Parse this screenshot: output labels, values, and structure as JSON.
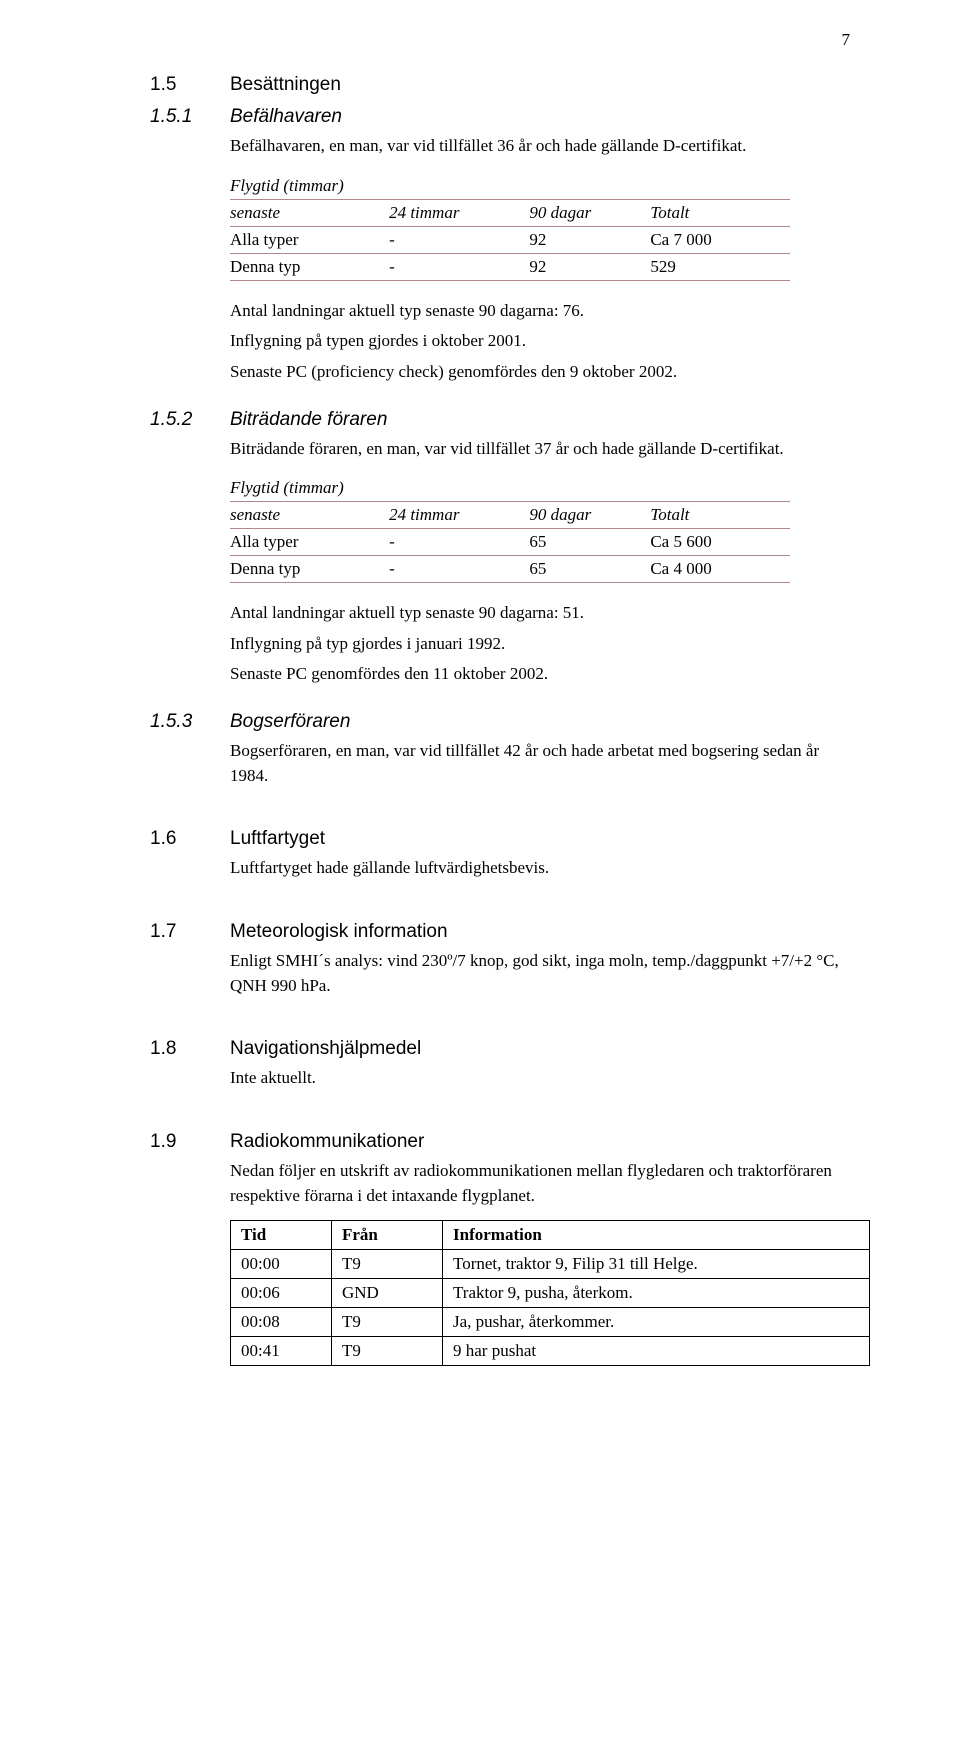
{
  "page_number": "7",
  "s15": {
    "num": "1.5",
    "title": "Besättningen"
  },
  "s151": {
    "num": "1.5.1",
    "title": "Befälhavaren",
    "intro": "Befälhavaren, en man, var vid tillfället 36 år och hade gällande D-certifikat.",
    "table": {
      "header_row1": "Flygtid (timmar)",
      "hdr_senaste": "senaste",
      "hdr_24": "24 timmar",
      "hdr_90": "90 dagar",
      "hdr_tot": "Totalt",
      "r1c1": "Alla typer",
      "r1c2": "-",
      "r1c3": "92",
      "r1c4": "Ca 7 000",
      "r2c1": "Denna typ",
      "r2c2": "-",
      "r2c3": "92",
      "r2c4": "529",
      "border_color": "#b08a8a"
    },
    "p1": "Antal landningar aktuell typ senaste 90 dagarna: 76.",
    "p2": "Inflygning på typen gjordes i oktober 2001.",
    "p3": "Senaste PC (proficiency check) genomfördes den 9 oktober 2002."
  },
  "s152": {
    "num": "1.5.2",
    "title": "Biträdande föraren",
    "intro": "Biträdande föraren, en man, var vid tillfället 37 år och hade gällande D-certifikat.",
    "table": {
      "header_row1": "Flygtid (timmar)",
      "hdr_senaste": "senaste",
      "hdr_24": "24 timmar",
      "hdr_90": "90 dagar",
      "hdr_tot": "Totalt",
      "r1c1": "Alla typer",
      "r1c2": "-",
      "r1c3": "65",
      "r1c4": "Ca 5 600",
      "r2c1": "Denna typ",
      "r2c2": "-",
      "r2c3": "65",
      "r2c4": "Ca 4 000"
    },
    "p1": "Antal landningar aktuell typ senaste 90 dagarna: 51.",
    "p2": "Inflygning på typ gjordes i januari 1992.",
    "p3": "Senaste PC genomfördes den 11 oktober 2002."
  },
  "s153": {
    "num": "1.5.3",
    "title": "Bogserföraren",
    "p1": "Bogserföraren, en man, var vid tillfället 42 år och hade arbetat med bogsering sedan år 1984."
  },
  "s16": {
    "num": "1.6",
    "title": "Luftfartyget",
    "p1": "Luftfartyget hade gällande luftvärdighetsbevis."
  },
  "s17": {
    "num": "1.7",
    "title": "Meteorologisk information",
    "p1": "Enligt SMHI´s analys: vind 230º/7 knop, god sikt, inga moln, temp./daggpunkt +7/+2 °C, QNH 990 hPa."
  },
  "s18": {
    "num": "1.8",
    "title": "Navigationshjälpmedel",
    "p1": "Inte aktuellt."
  },
  "s19": {
    "num": "1.9",
    "title": "Radiokommunikationer",
    "p1": "Nedan följer en utskrift av radiokommunikationen mellan flygledaren och traktorföraren respektive förarna i det intaxande flygplanet.",
    "table": {
      "h1": "Tid",
      "h2": "Från",
      "h3": "Information",
      "rows": [
        {
          "t": "00:00",
          "f": "T9",
          "i": "Tornet, traktor 9, Filip 31 till Helge."
        },
        {
          "t": "00:06",
          "f": "GND",
          "i": "Traktor 9, pusha, återkom."
        },
        {
          "t": "00:08",
          "f": "T9",
          "i": "Ja, pushar, återkommer."
        },
        {
          "t": "00:41",
          "f": "T9",
          "i": "9 har pushat"
        }
      ]
    }
  }
}
